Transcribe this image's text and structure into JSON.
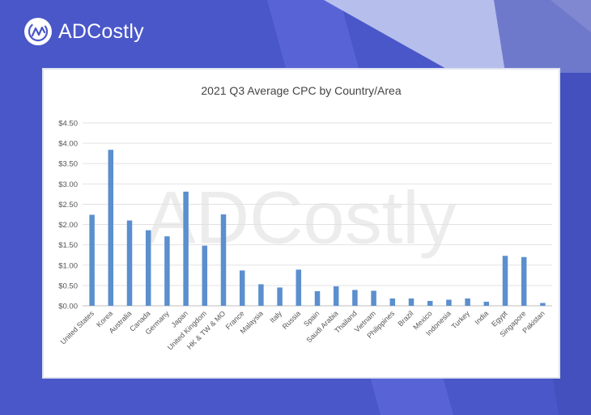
{
  "brand": {
    "name": "ADCostly",
    "icon": "adcostly-logo-icon",
    "colors": {
      "background": "#4a57c9",
      "bar": "#5b8fce"
    }
  },
  "chart_data": {
    "type": "bar",
    "title": "2021 Q3 Average CPC by Country/Area",
    "watermark": "ADCostly",
    "xlabel": "",
    "ylabel": "",
    "ylim": [
      0,
      4.5
    ],
    "yticks": [
      "$0.00",
      "$0.50",
      "$1.00",
      "$1.50",
      "$2.00",
      "$2.50",
      "$3.00",
      "$3.50",
      "$4.00",
      "$4.50"
    ],
    "grid": true,
    "categories": [
      "United States",
      "Korea",
      "Australia",
      "Canada",
      "Germany",
      "Japan",
      "United Kingdom",
      "HK & TW & MO",
      "France",
      "Malaysia",
      "Italy",
      "Russia",
      "Spain",
      "Saudi Arabia",
      "Thailand",
      "Vietnam",
      "Philippines",
      "Brazil",
      "Mexico",
      "Indonesia",
      "Turkey",
      "India",
      "Egypt",
      "Singapore",
      "Pakistan"
    ],
    "values": [
      2.24,
      3.84,
      2.1,
      1.86,
      1.71,
      2.81,
      1.48,
      2.25,
      0.87,
      0.53,
      0.45,
      0.89,
      0.36,
      0.48,
      0.39,
      0.37,
      0.18,
      0.18,
      0.12,
      0.15,
      0.18,
      0.1,
      1.23,
      1.2,
      0.07
    ]
  }
}
